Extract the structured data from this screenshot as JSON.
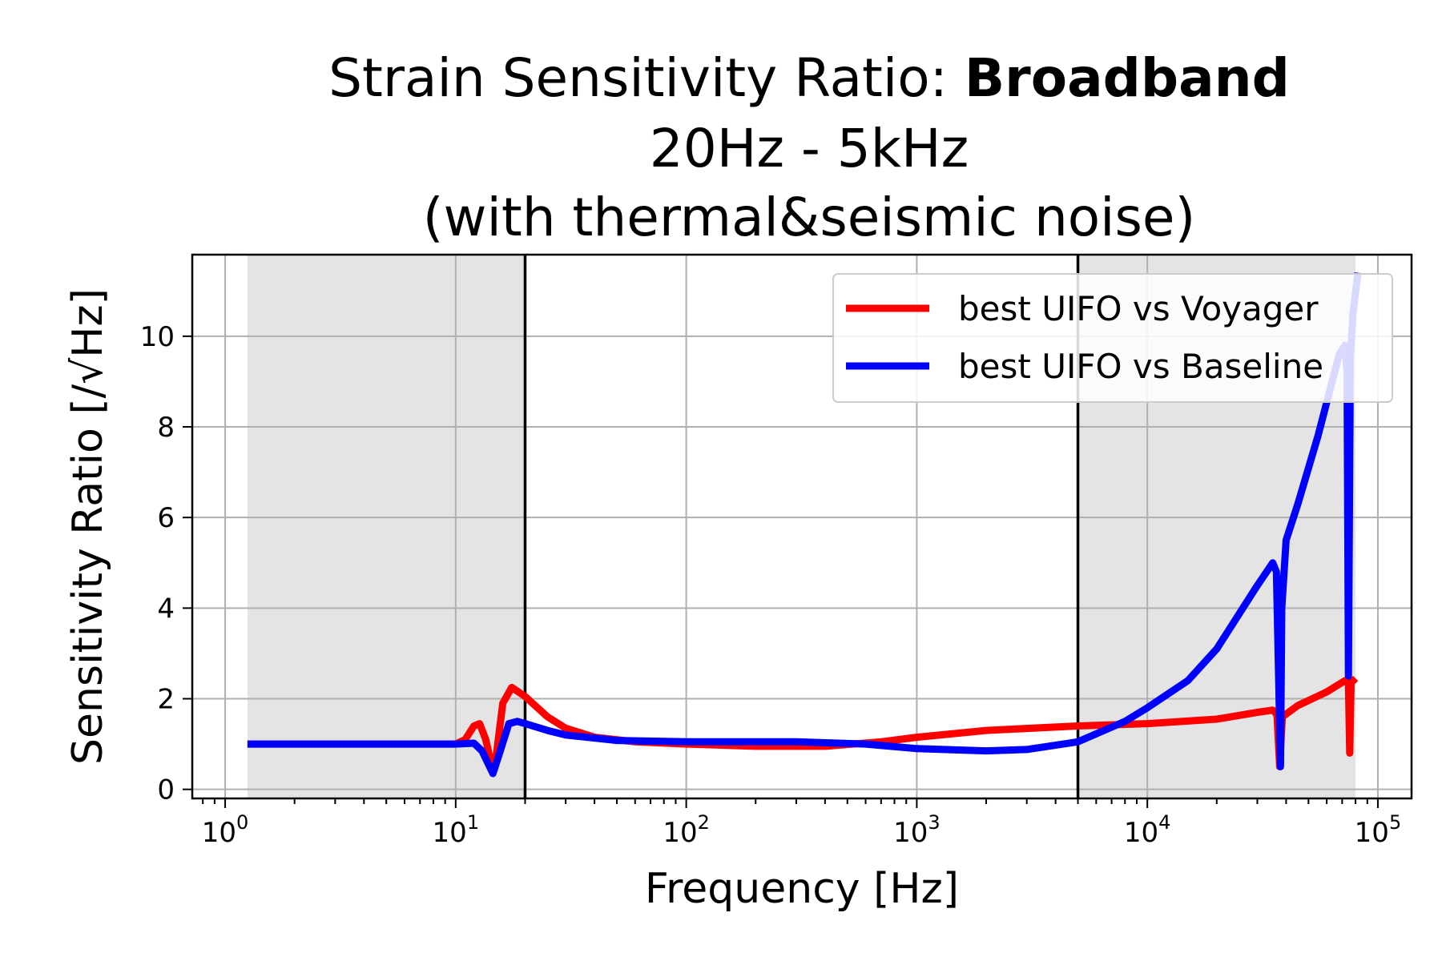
{
  "chart_data": {
    "type": "line",
    "title": {
      "prefix": "Strain Sensitivity Ratio: ",
      "bold": "Broadband",
      "line2": "20Hz - 5kHz",
      "line3": "(with thermal&seismic noise)"
    },
    "xlabel": "Frequency [Hz]",
    "ylabel": "Sensitivity Ratio [/√Hz]",
    "x_scale": "log",
    "xlim": [
      0.72,
      140000
    ],
    "ylim": [
      -0.2,
      11.8
    ],
    "x_ticks": [
      {
        "value": 1,
        "base": "10",
        "exp": "0"
      },
      {
        "value": 10,
        "base": "10",
        "exp": "1"
      },
      {
        "value": 100,
        "base": "10",
        "exp": "2"
      },
      {
        "value": 1000,
        "base": "10",
        "exp": "3"
      },
      {
        "value": 10000,
        "base": "10",
        "exp": "4"
      },
      {
        "value": 100000,
        "base": "10",
        "exp": "5"
      }
    ],
    "y_ticks": [
      0,
      2,
      4,
      6,
      8,
      10
    ],
    "grid": true,
    "legend_position": "top-right",
    "shaded_regions": [
      {
        "x_start": 1.25,
        "x_end": 20,
        "color": "#e4e4e4"
      },
      {
        "x_start": 5000,
        "x_end": 80000,
        "color": "#e4e4e4"
      }
    ],
    "vertical_lines": [
      20,
      5000
    ],
    "series": [
      {
        "name": "best UIFO vs Voyager",
        "color": "#ff0000",
        "points": [
          [
            1.25,
            1.0
          ],
          [
            5,
            1.0
          ],
          [
            10,
            1.0
          ],
          [
            11,
            1.1
          ],
          [
            12,
            1.4
          ],
          [
            12.7,
            1.45
          ],
          [
            13.5,
            1.1
          ],
          [
            14.3,
            0.55
          ],
          [
            15,
            0.75
          ],
          [
            16,
            1.9
          ],
          [
            17.5,
            2.25
          ],
          [
            20,
            2.05
          ],
          [
            25,
            1.6
          ],
          [
            30,
            1.35
          ],
          [
            40,
            1.15
          ],
          [
            60,
            1.05
          ],
          [
            100,
            1.0
          ],
          [
            200,
            0.95
          ],
          [
            400,
            0.95
          ],
          [
            700,
            1.05
          ],
          [
            1000,
            1.15
          ],
          [
            2000,
            1.3
          ],
          [
            5000,
            1.4
          ],
          [
            10000,
            1.45
          ],
          [
            20000,
            1.55
          ],
          [
            30000,
            1.7
          ],
          [
            35000,
            1.75
          ],
          [
            36500,
            1.65
          ],
          [
            37500,
            0.5
          ],
          [
            38500,
            1.6
          ],
          [
            45000,
            1.85
          ],
          [
            60000,
            2.15
          ],
          [
            72000,
            2.4
          ],
          [
            74500,
            2.35
          ],
          [
            75500,
            0.8
          ],
          [
            76500,
            2.35
          ],
          [
            80000,
            2.45
          ]
        ]
      },
      {
        "name": "best UIFO vs Baseline",
        "color": "#0000ff",
        "points": [
          [
            1.25,
            1.0
          ],
          [
            5,
            1.0
          ],
          [
            10,
            1.0
          ],
          [
            12,
            1.02
          ],
          [
            13,
            0.85
          ],
          [
            14.5,
            0.35
          ],
          [
            15.5,
            0.8
          ],
          [
            17,
            1.45
          ],
          [
            18.5,
            1.5
          ],
          [
            20,
            1.45
          ],
          [
            25,
            1.3
          ],
          [
            30,
            1.2
          ],
          [
            50,
            1.08
          ],
          [
            100,
            1.05
          ],
          [
            300,
            1.05
          ],
          [
            600,
            1.0
          ],
          [
            1000,
            0.9
          ],
          [
            2000,
            0.85
          ],
          [
            3000,
            0.88
          ],
          [
            5000,
            1.05
          ],
          [
            8000,
            1.5
          ],
          [
            10000,
            1.8
          ],
          [
            15000,
            2.4
          ],
          [
            20000,
            3.1
          ],
          [
            30000,
            4.5
          ],
          [
            35000,
            5.0
          ],
          [
            36300,
            4.8
          ],
          [
            37800,
            0.5
          ],
          [
            38300,
            4.0
          ],
          [
            40000,
            5.5
          ],
          [
            45000,
            6.3
          ],
          [
            55000,
            7.8
          ],
          [
            68000,
            9.6
          ],
          [
            72000,
            9.8
          ],
          [
            73500,
            9.2
          ],
          [
            74500,
            2.5
          ],
          [
            76000,
            9.5
          ],
          [
            78000,
            10.5
          ],
          [
            82000,
            11.4
          ]
        ]
      }
    ]
  }
}
